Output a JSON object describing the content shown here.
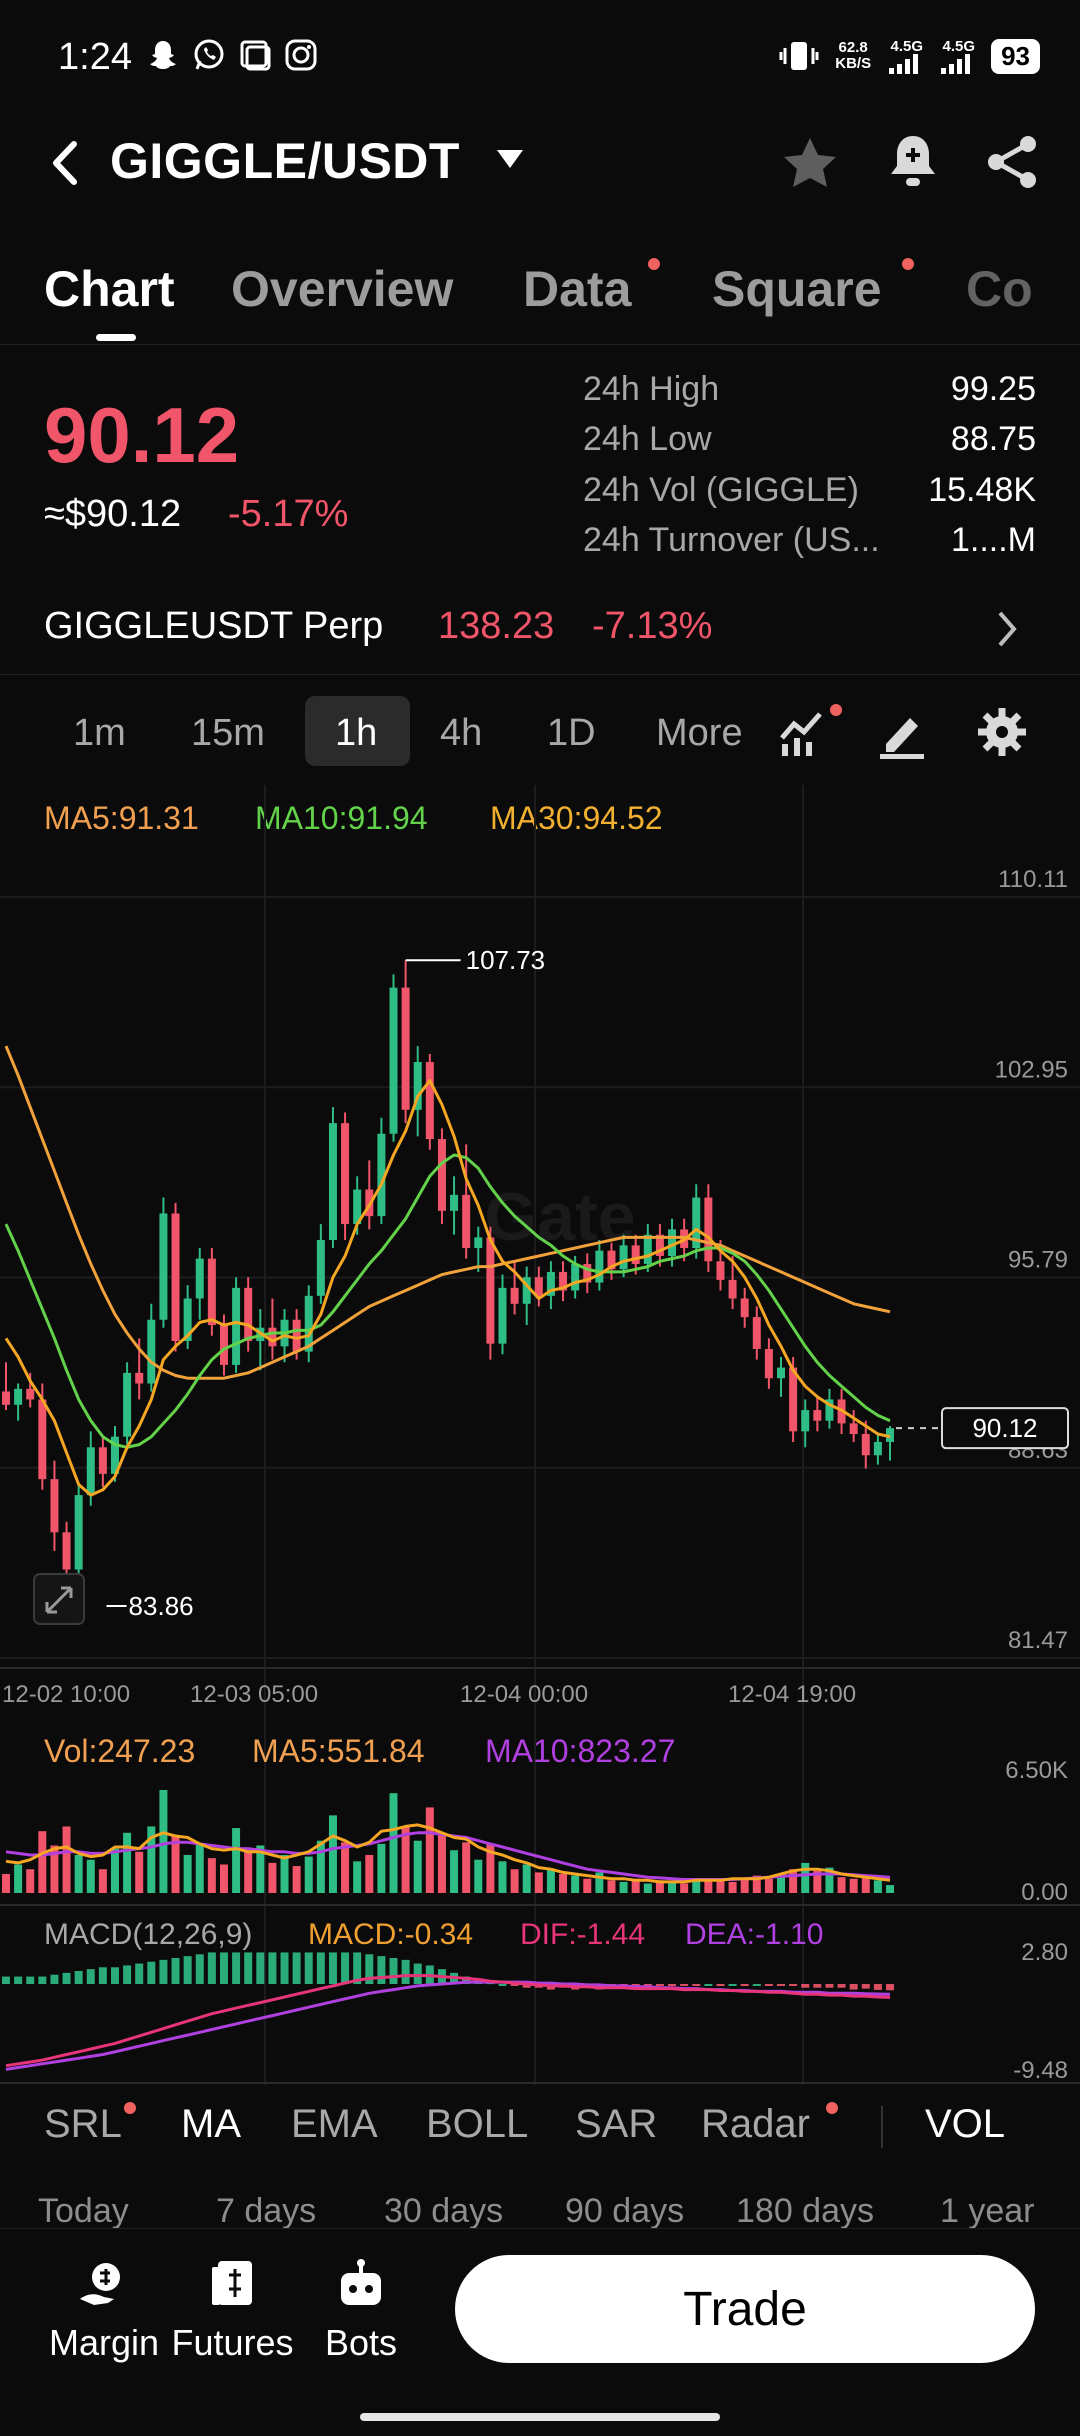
{
  "status_bar": {
    "time": "1:24",
    "net_speed_value": "62.8",
    "net_speed_unit": "KB/S",
    "signal_1": "4.5G",
    "signal_2": "4.5G",
    "battery": "93"
  },
  "header": {
    "pair": "GIGGLE/USDT"
  },
  "tabs": [
    {
      "label": "Chart"
    },
    {
      "label": "Overview"
    },
    {
      "label": "Data"
    },
    {
      "label": "Square"
    },
    {
      "label": "Co"
    }
  ],
  "price": {
    "last": "90.12",
    "usd": "≈$90.12",
    "change": "-5.17%"
  },
  "stats": [
    {
      "label": "24h High",
      "value": "99.25"
    },
    {
      "label": "24h Low",
      "value": "88.75"
    },
    {
      "label": "24h Vol (GIGGLE)",
      "value": "15.48K"
    },
    {
      "label": "24h Turnover (US...",
      "value": "1....M"
    }
  ],
  "perp": {
    "name": "GIGGLEUSDT Perp",
    "price": "138.23",
    "change": "-7.13%"
  },
  "intervals": [
    "1m",
    "15m",
    "1h",
    "4h",
    "1D",
    "More"
  ],
  "ma_legend": {
    "ma5": "MA5:91.31",
    "ma10": "MA10:91.94",
    "ma30": "MA30:94.52"
  },
  "volume_legend": {
    "vol": "Vol:247.23",
    "ma5": "MA5:551.84",
    "ma10": "MA10:823.27"
  },
  "macd_legend": {
    "name": "MACD(12,26,9)",
    "macd": "MACD:-0.34",
    "dif": "DIF:-1.44",
    "dea": "DEA:-1.10"
  },
  "indicators": [
    "SRL",
    "MA",
    "EMA",
    "BOLL",
    "SAR",
    "Radar",
    "VOL"
  ],
  "ranges": [
    "Today",
    "7 days",
    "30 days",
    "90 days",
    "180 days",
    "1 year"
  ],
  "bottom_nav": {
    "margin": "Margin",
    "futures": "Futures",
    "bots": "Bots",
    "trade": "Trade"
  },
  "colors": {
    "up": "#2ebd85",
    "down": "#f0556a",
    "ma5": "#f5a623",
    "ma10": "#63d24a",
    "ma30": "#f2a23a",
    "dif": "#e8357a",
    "dea": "#b040e0"
  },
  "chart_data": {
    "type": "candlestick",
    "watermark": "Gate",
    "y_axis_labels": [
      "110.11",
      "102.95",
      "95.79",
      "88.63",
      "81.47"
    ],
    "ylim": [
      81.47,
      110.11
    ],
    "x_axis_labels": [
      "12-02 10:00",
      "12-03 05:00",
      "12-04 00:00",
      "12-04 19:00"
    ],
    "max_label": "107.73",
    "min_label": "83.86",
    "current_price_tag": "90.12",
    "candles": [
      {
        "o": 91.5,
        "h": 92.6,
        "l": 90.8,
        "c": 91.0
      },
      {
        "o": 91.0,
        "h": 91.8,
        "l": 90.4,
        "c": 91.6
      },
      {
        "o": 91.6,
        "h": 92.2,
        "l": 90.9,
        "c": 91.2
      },
      {
        "o": 91.2,
        "h": 91.8,
        "l": 87.8,
        "c": 88.2
      },
      {
        "o": 88.2,
        "h": 88.9,
        "l": 85.5,
        "c": 86.2
      },
      {
        "o": 86.2,
        "h": 86.6,
        "l": 83.86,
        "c": 84.8
      },
      {
        "o": 84.8,
        "h": 88.0,
        "l": 84.5,
        "c": 87.6
      },
      {
        "o": 87.6,
        "h": 90.0,
        "l": 87.2,
        "c": 89.4
      },
      {
        "o": 89.4,
        "h": 89.8,
        "l": 87.9,
        "c": 88.4
      },
      {
        "o": 88.4,
        "h": 90.2,
        "l": 88.1,
        "c": 89.8
      },
      {
        "o": 89.8,
        "h": 92.6,
        "l": 89.5,
        "c": 92.2
      },
      {
        "o": 92.2,
        "h": 93.5,
        "l": 91.2,
        "c": 91.8
      },
      {
        "o": 91.8,
        "h": 94.8,
        "l": 91.5,
        "c": 94.2
      },
      {
        "o": 94.2,
        "h": 98.8,
        "l": 93.9,
        "c": 98.2
      },
      {
        "o": 98.2,
        "h": 98.6,
        "l": 93.0,
        "c": 93.4
      },
      {
        "o": 93.4,
        "h": 95.5,
        "l": 93.1,
        "c": 95.0
      },
      {
        "o": 95.0,
        "h": 96.9,
        "l": 94.2,
        "c": 96.5
      },
      {
        "o": 96.5,
        "h": 96.9,
        "l": 93.6,
        "c": 94.0
      },
      {
        "o": 94.0,
        "h": 94.4,
        "l": 92.1,
        "c": 92.5
      },
      {
        "o": 92.5,
        "h": 95.8,
        "l": 92.2,
        "c": 95.4
      },
      {
        "o": 95.4,
        "h": 95.8,
        "l": 93.0,
        "c": 93.4
      },
      {
        "o": 93.4,
        "h": 94.6,
        "l": 92.3,
        "c": 93.9
      },
      {
        "o": 93.9,
        "h": 95.0,
        "l": 92.7,
        "c": 93.2
      },
      {
        "o": 93.2,
        "h": 94.6,
        "l": 92.6,
        "c": 94.2
      },
      {
        "o": 94.2,
        "h": 94.6,
        "l": 92.7,
        "c": 93.0
      },
      {
        "o": 93.0,
        "h": 95.5,
        "l": 92.6,
        "c": 95.1
      },
      {
        "o": 95.1,
        "h": 97.8,
        "l": 94.8,
        "c": 97.2
      },
      {
        "o": 97.2,
        "h": 102.2,
        "l": 96.9,
        "c": 101.6
      },
      {
        "o": 101.6,
        "h": 102.0,
        "l": 97.2,
        "c": 97.8
      },
      {
        "o": 97.8,
        "h": 99.6,
        "l": 97.4,
        "c": 99.1
      },
      {
        "o": 99.1,
        "h": 100.2,
        "l": 97.6,
        "c": 98.1
      },
      {
        "o": 98.1,
        "h": 101.8,
        "l": 97.8,
        "c": 101.2
      },
      {
        "o": 101.2,
        "h": 107.2,
        "l": 100.9,
        "c": 106.7
      },
      {
        "o": 106.7,
        "h": 107.73,
        "l": 101.6,
        "c": 102.1
      },
      {
        "o": 102.1,
        "h": 104.5,
        "l": 101.1,
        "c": 103.9
      },
      {
        "o": 103.9,
        "h": 104.2,
        "l": 100.6,
        "c": 101.0
      },
      {
        "o": 101.0,
        "h": 101.4,
        "l": 97.8,
        "c": 98.3
      },
      {
        "o": 98.3,
        "h": 99.6,
        "l": 97.4,
        "c": 98.9
      },
      {
        "o": 98.9,
        "h": 100.8,
        "l": 96.5,
        "c": 96.9
      },
      {
        "o": 96.9,
        "h": 97.7,
        "l": 96.0,
        "c": 97.3
      },
      {
        "o": 97.3,
        "h": 97.7,
        "l": 92.7,
        "c": 93.3
      },
      {
        "o": 93.3,
        "h": 95.9,
        "l": 92.9,
        "c": 95.4
      },
      {
        "o": 95.4,
        "h": 96.4,
        "l": 94.4,
        "c": 94.8
      },
      {
        "o": 94.8,
        "h": 96.2,
        "l": 94.0,
        "c": 95.8
      },
      {
        "o": 95.8,
        "h": 96.2,
        "l": 94.7,
        "c": 95.1
      },
      {
        "o": 95.1,
        "h": 96.4,
        "l": 94.6,
        "c": 96.0
      },
      {
        "o": 96.0,
        "h": 96.4,
        "l": 94.9,
        "c": 95.3
      },
      {
        "o": 95.3,
        "h": 96.6,
        "l": 95.0,
        "c": 96.3
      },
      {
        "o": 96.3,
        "h": 96.7,
        "l": 95.2,
        "c": 95.6
      },
      {
        "o": 95.6,
        "h": 97.2,
        "l": 95.3,
        "c": 96.8
      },
      {
        "o": 96.8,
        "h": 97.1,
        "l": 95.7,
        "c": 96.1
      },
      {
        "o": 96.1,
        "h": 97.4,
        "l": 95.8,
        "c": 97.0
      },
      {
        "o": 97.0,
        "h": 97.4,
        "l": 95.9,
        "c": 96.3
      },
      {
        "o": 96.3,
        "h": 97.8,
        "l": 96.0,
        "c": 97.4
      },
      {
        "o": 97.4,
        "h": 97.8,
        "l": 96.2,
        "c": 96.6
      },
      {
        "o": 96.6,
        "h": 98.0,
        "l": 96.2,
        "c": 97.6
      },
      {
        "o": 97.6,
        "h": 98.0,
        "l": 96.4,
        "c": 96.9
      },
      {
        "o": 96.9,
        "h": 99.3,
        "l": 96.5,
        "c": 98.8
      },
      {
        "o": 98.8,
        "h": 99.3,
        "l": 96.0,
        "c": 96.4
      },
      {
        "o": 96.4,
        "h": 97.2,
        "l": 95.3,
        "c": 95.7
      },
      {
        "o": 95.7,
        "h": 96.6,
        "l": 94.6,
        "c": 95.0
      },
      {
        "o": 95.0,
        "h": 95.4,
        "l": 93.9,
        "c": 94.3
      },
      {
        "o": 94.3,
        "h": 94.7,
        "l": 92.7,
        "c": 93.1
      },
      {
        "o": 93.1,
        "h": 93.5,
        "l": 91.6,
        "c": 92.0
      },
      {
        "o": 92.0,
        "h": 92.8,
        "l": 91.3,
        "c": 92.4
      },
      {
        "o": 92.4,
        "h": 92.8,
        "l": 89.6,
        "c": 90.0
      },
      {
        "o": 90.0,
        "h": 91.2,
        "l": 89.4,
        "c": 90.8
      },
      {
        "o": 90.8,
        "h": 91.3,
        "l": 90.0,
        "c": 90.4
      },
      {
        "o": 90.4,
        "h": 91.6,
        "l": 90.1,
        "c": 91.2
      },
      {
        "o": 91.2,
        "h": 91.6,
        "l": 89.9,
        "c": 90.3
      },
      {
        "o": 90.3,
        "h": 90.8,
        "l": 89.6,
        "c": 89.9
      },
      {
        "o": 89.9,
        "h": 90.4,
        "l": 88.6,
        "c": 89.1
      },
      {
        "o": 89.1,
        "h": 89.9,
        "l": 88.75,
        "c": 89.6
      },
      {
        "o": 89.6,
        "h": 90.2,
        "l": 88.9,
        "c": 90.12
      }
    ],
    "ma5": [
      93.5,
      92.8,
      91.9,
      91.2,
      90.4,
      89.2,
      88.0,
      87.6,
      87.8,
      88.3,
      89.4,
      90.2,
      91.2,
      92.7,
      93.2,
      93.6,
      94.1,
      94.2,
      94.0,
      94.1,
      94.0,
      93.7,
      93.4,
      93.6,
      93.5,
      93.6,
      94.4,
      95.8,
      96.6,
      97.8,
      98.5,
      99.3,
      100.4,
      101.3,
      102.6,
      103.2,
      102.3,
      101.1,
      99.5,
      98.5,
      97.2,
      96.4,
      96.0,
      95.5,
      95.0,
      95.3,
      95.4,
      95.6,
      95.7,
      95.9,
      96.2,
      96.4,
      96.5,
      96.6,
      96.8,
      97.0,
      97.2,
      97.6,
      97.3,
      96.8,
      96.4,
      95.8,
      95.0,
      94.0,
      93.2,
      92.3,
      91.7,
      91.3,
      91.0,
      90.8,
      90.5,
      90.2,
      89.9,
      89.8
    ],
    "ma10": [
      97.8,
      96.8,
      95.7,
      94.6,
      93.5,
      92.3,
      91.2,
      90.4,
      89.8,
      89.5,
      89.4,
      89.5,
      89.8,
      90.3,
      90.8,
      91.4,
      92.1,
      92.7,
      93.1,
      93.3,
      93.5,
      93.6,
      93.7,
      93.7,
      93.8,
      93.8,
      94.0,
      94.5,
      95.1,
      95.7,
      96.3,
      96.8,
      97.4,
      98.0,
      98.8,
      99.6,
      100.1,
      100.4,
      100.3,
      99.9,
      99.2,
      98.6,
      98.1,
      97.7,
      97.3,
      97.0,
      96.6,
      96.3,
      96.1,
      96.0,
      96.0,
      96.0,
      96.1,
      96.2,
      96.4,
      96.5,
      96.6,
      96.8,
      96.9,
      96.9,
      96.7,
      96.4,
      95.9,
      95.3,
      94.6,
      93.9,
      93.2,
      92.6,
      92.1,
      91.7,
      91.3,
      90.9,
      90.6,
      90.4
    ],
    "ma30": [
      104.5,
      103.4,
      102.2,
      101.0,
      99.8,
      98.6,
      97.4,
      96.3,
      95.3,
      94.4,
      93.7,
      93.1,
      92.6,
      92.3,
      92.1,
      92.0,
      92.0,
      92.0,
      92.0,
      92.1,
      92.2,
      92.4,
      92.6,
      92.8,
      93.0,
      93.2,
      93.5,
      93.8,
      94.1,
      94.4,
      94.7,
      94.9,
      95.1,
      95.3,
      95.5,
      95.7,
      95.9,
      96.0,
      96.1,
      96.2,
      96.2,
      96.3,
      96.4,
      96.5,
      96.6,
      96.7,
      96.8,
      96.9,
      97.0,
      97.1,
      97.2,
      97.3,
      97.3,
      97.3,
      97.3,
      97.3,
      97.3,
      97.2,
      97.1,
      97.0,
      96.8,
      96.6,
      96.4,
      96.2,
      96.0,
      95.8,
      95.6,
      95.4,
      95.2,
      95.0,
      94.8,
      94.7,
      94.6,
      94.5
    ],
    "volume_axis_labels": [
      "6.50K",
      "0.00"
    ],
    "volume_ylim": [
      0,
      6500
    ],
    "volumes": [
      1200,
      1800,
      1500,
      3900,
      3000,
      4200,
      2400,
      2100,
      1500,
      2800,
      3800,
      2600,
      4200,
      6500,
      3600,
      2400,
      3100,
      2200,
      1800,
      4100,
      2600,
      3000,
      1900,
      2400,
      1700,
      2300,
      3300,
      4900,
      3200,
      2000,
      2400,
      3100,
      6300,
      4200,
      3300,
      5400,
      3800,
      2700,
      3200,
      2100,
      3100,
      2000,
      1500,
      1800,
      1300,
      1500,
      1200,
      1100,
      900,
      1300,
      800,
      700,
      900,
      600,
      800,
      700,
      600,
      900,
      900,
      800,
      700,
      900,
      1100,
      900,
      1200,
      1500,
      1900,
      1400,
      1600,
      1000,
      900,
      1000,
      800,
      500
    ],
    "volume_ma5": [
      2000,
      1900,
      2100,
      2500,
      2800,
      2900,
      2500,
      2300,
      2400,
      2900,
      2900,
      2800,
      3500,
      3800,
      3600,
      3500,
      3100,
      2800,
      2700,
      2800,
      2600,
      2600,
      2400,
      2200,
      2400,
      2600,
      3100,
      3600,
      3300,
      2900,
      3200,
      3900,
      4000,
      4200,
      4300,
      4100,
      3800,
      3500,
      3400,
      2900,
      2600,
      2400,
      2100,
      1900,
      1600,
      1500,
      1300,
      1200,
      1100,
      1000,
      900,
      900,
      800,
      800,
      700,
      700,
      700,
      800,
      800,
      800,
      900,
      900,
      900,
      1000,
      1200,
      1400,
      1500,
      1500,
      1400,
      1200,
      1100,
      1000,
      900,
      800
    ],
    "volume_ma10": [
      2600,
      2500,
      2400,
      2400,
      2500,
      2600,
      2600,
      2500,
      2500,
      2600,
      2700,
      2800,
      2900,
      3100,
      3200,
      3200,
      3100,
      3000,
      2900,
      2800,
      2800,
      2700,
      2600,
      2600,
      2500,
      2500,
      2600,
      2800,
      2900,
      3000,
      3100,
      3300,
      3500,
      3700,
      3800,
      3800,
      3700,
      3600,
      3500,
      3300,
      3100,
      2900,
      2700,
      2500,
      2300,
      2100,
      1900,
      1700,
      1500,
      1400,
      1300,
      1200,
      1100,
      1000,
      950,
      900,
      850,
      850,
      850,
      850,
      850,
      900,
      950,
      1000,
      1050,
      1100,
      1150,
      1200,
      1200,
      1200,
      1150,
      1100,
      1050,
      1000
    ],
    "macd_axis_labels": [
      "2.80",
      "-9.48"
    ],
    "macd_ylim": [
      -9.48,
      2.8
    ],
    "macd_dif": [
      -8.8,
      -8.6,
      -8.4,
      -8.2,
      -7.9,
      -7.6,
      -7.3,
      -7.0,
      -6.7,
      -6.4,
      -6.0,
      -5.6,
      -5.2,
      -4.8,
      -4.4,
      -4.0,
      -3.6,
      -3.2,
      -2.9,
      -2.6,
      -2.3,
      -2.0,
      -1.7,
      -1.4,
      -1.1,
      -0.8,
      -0.5,
      -0.2,
      0.1,
      0.4,
      0.6,
      0.7,
      0.8,
      0.9,
      0.9,
      0.9,
      0.8,
      0.7,
      0.6,
      0.5,
      0.3,
      0.2,
      0.1,
      0.0,
      -0.1,
      -0.2,
      -0.2,
      -0.3,
      -0.3,
      -0.4,
      -0.4,
      -0.4,
      -0.5,
      -0.5,
      -0.5,
      -0.5,
      -0.6,
      -0.6,
      -0.6,
      -0.7,
      -0.7,
      -0.8,
      -0.8,
      -0.9,
      -0.9,
      -1.0,
      -1.1,
      -1.1,
      -1.2,
      -1.2,
      -1.3,
      -1.3,
      -1.4,
      -1.44
    ],
    "macd_dea": [
      -9.2,
      -9.0,
      -8.8,
      -8.6,
      -8.4,
      -8.2,
      -8.0,
      -7.8,
      -7.6,
      -7.3,
      -7.0,
      -6.7,
      -6.4,
      -6.1,
      -5.8,
      -5.5,
      -5.2,
      -4.9,
      -4.6,
      -4.3,
      -4.0,
      -3.7,
      -3.4,
      -3.1,
      -2.8,
      -2.5,
      -2.2,
      -1.9,
      -1.6,
      -1.3,
      -1.0,
      -0.8,
      -0.6,
      -0.4,
      -0.2,
      -0.1,
      0.0,
      0.1,
      0.2,
      0.2,
      0.2,
      0.2,
      0.2,
      0.2,
      0.1,
      0.1,
      0.0,
      0.0,
      -0.1,
      -0.1,
      -0.2,
      -0.2,
      -0.3,
      -0.3,
      -0.4,
      -0.4,
      -0.5,
      -0.5,
      -0.6,
      -0.6,
      -0.7,
      -0.7,
      -0.8,
      -0.8,
      -0.8,
      -0.9,
      -0.9,
      -0.9,
      -1.0,
      -1.0,
      -1.0,
      -1.05,
      -1.08,
      -1.1
    ]
  }
}
